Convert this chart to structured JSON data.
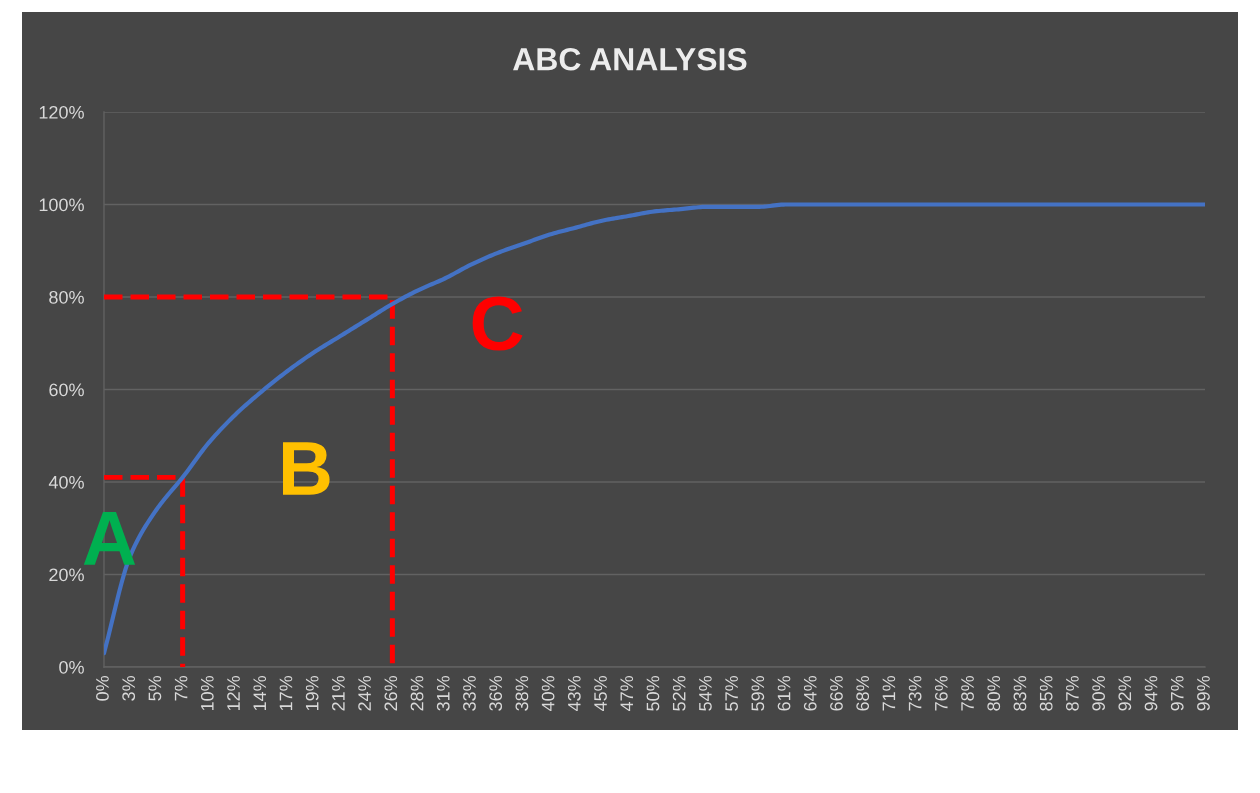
{
  "chart_data": {
    "type": "line",
    "title": "ABC ANALYSIS",
    "categories": [
      "0%",
      "3%",
      "5%",
      "7%",
      "10%",
      "12%",
      "14%",
      "17%",
      "19%",
      "21%",
      "24%",
      "26%",
      "28%",
      "31%",
      "33%",
      "36%",
      "38%",
      "40%",
      "43%",
      "45%",
      "47%",
      "50%",
      "52%",
      "54%",
      "57%",
      "59%",
      "61%",
      "64%",
      "66%",
      "68%",
      "71%",
      "73%",
      "76%",
      "78%",
      "80%",
      "83%",
      "85%",
      "87%",
      "90%",
      "92%",
      "94%",
      "97%",
      "99%"
    ],
    "series": [
      {
        "color": "#4472c4",
        "values": [
          3,
          24,
          34,
          41,
          48.5,
          54.5,
          59.5,
          64,
          68,
          71.5,
          75,
          78.5,
          81.5,
          84,
          87,
          89.5,
          91.5,
          93.5,
          95,
          96.5,
          97.5,
          98.5,
          99,
          99.5,
          99.5,
          99.5,
          100,
          100,
          100,
          100,
          100,
          100,
          100,
          100,
          100,
          100,
          100,
          100,
          100,
          100,
          100,
          100,
          100
        ]
      },
      {
        "type": "line",
        "color": "#ff0000",
        "line_style": "dashed",
        "x": [
          "0%",
          "7%",
          "7%"
        ],
        "values": [
          41,
          41,
          0
        ]
      },
      {
        "type": "line",
        "color": "#ff0000",
        "line_style": "dashed",
        "x": [
          "0%",
          "26%",
          "26%"
        ],
        "values": [
          80,
          80,
          0
        ]
      }
    ],
    "ylim": [
      0,
      120
    ],
    "yticks": [
      {
        "value": 0,
        "label": "0%"
      },
      {
        "value": 20,
        "label": "20%"
      },
      {
        "value": 40,
        "label": "40%"
      },
      {
        "value": 60,
        "label": "60%"
      },
      {
        "value": 80,
        "label": "80%"
      },
      {
        "value": 100,
        "label": "100%"
      },
      {
        "value": 120,
        "label": "120%"
      }
    ],
    "grid": "y",
    "line_style": "solid",
    "annotations": [
      "A",
      "B",
      "C"
    ]
  }
}
